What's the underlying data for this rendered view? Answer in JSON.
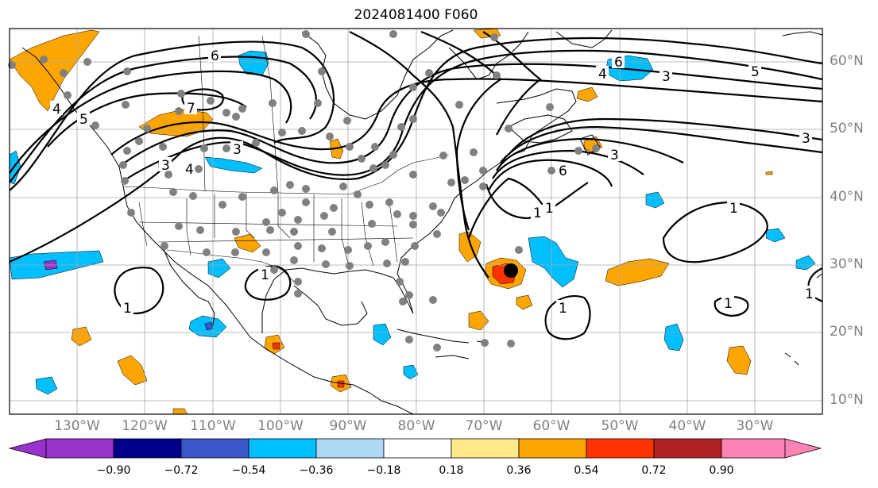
{
  "title": "2024081400 F060",
  "lat_labels": [
    "60°N",
    "50°N",
    "40°N",
    "30°N",
    "20°N",
    "10°N"
  ],
  "lon_labels": [
    "130°W",
    "120°W",
    "110°W",
    "100°W",
    "90°W",
    "80°W",
    "70°W",
    "60°W",
    "50°W",
    "40°W",
    "30°W"
  ],
  "contour_labels": [
    "6",
    "6",
    "4",
    "3",
    "5",
    "7",
    "4",
    "3",
    "4",
    "5",
    "3",
    "1",
    "1",
    "1",
    "1",
    "3",
    "1",
    "1",
    "1",
    "6",
    "3",
    "1"
  ],
  "colorbar": {
    "ticks": [
      "−0.90",
      "−0.72",
      "−0.54",
      "−0.36",
      "−0.18",
      "0.18",
      "0.36",
      "0.54",
      "0.72",
      "0.90"
    ],
    "colors": [
      "#9932cc",
      "#00008b",
      "#3a56c9",
      "#00bfff",
      "#add8f5",
      "#ffffff",
      "#ffe88a",
      "#ffa500",
      "#ff3300",
      "#b22222",
      "#ff82b4"
    ]
  },
  "marker": {
    "lat": 29,
    "lon": "66°W",
    "color": "#000000"
  }
}
